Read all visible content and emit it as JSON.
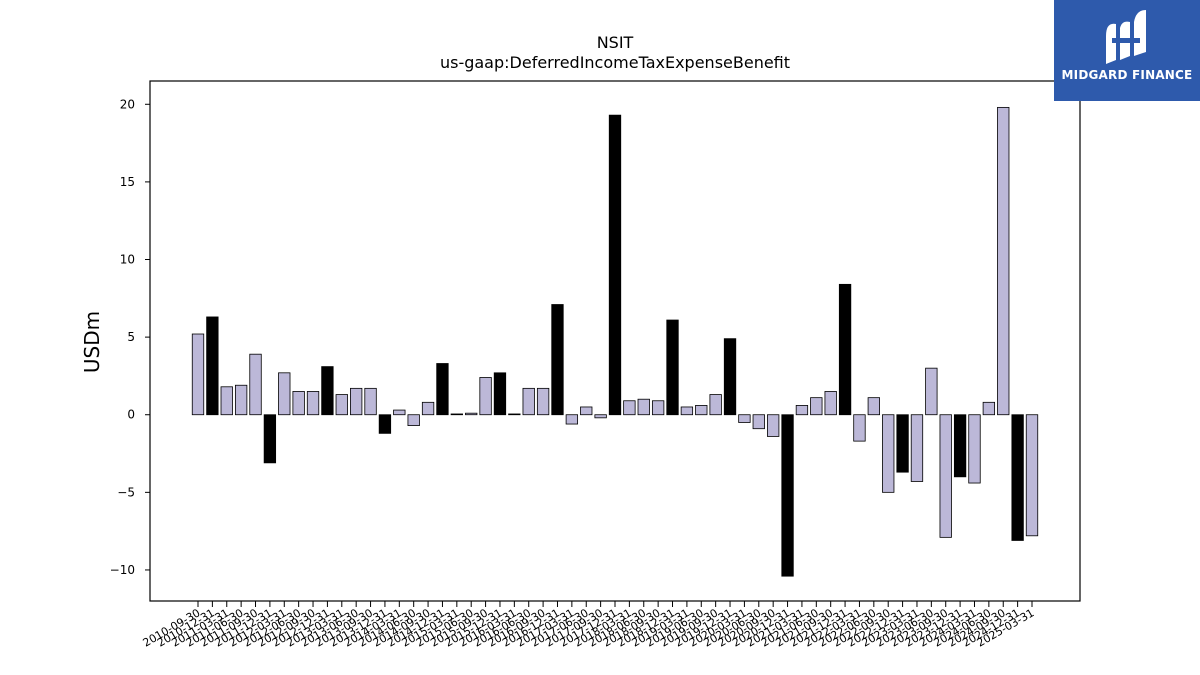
{
  "chart_data": {
    "type": "bar",
    "title": "NSIT",
    "subtitle": "us-gaap:DeferredIncomeTaxExpenseBenefit",
    "xlabel": "",
    "ylabel": "USDm",
    "ylim": [
      -12,
      21.5
    ],
    "yticks": [
      -10,
      -5,
      0,
      5,
      10,
      15,
      20
    ],
    "grid": false,
    "categories": [
      "2010-09-30",
      "2010-12-31",
      "2011-03-31",
      "2011-06-30",
      "2011-09-30",
      "2011-12-31",
      "2012-03-31",
      "2012-06-30",
      "2012-09-30",
      "2012-12-31",
      "2013-03-31",
      "2013-06-30",
      "2013-09-30",
      "2013-12-31",
      "2014-03-31",
      "2014-06-30",
      "2014-09-30",
      "2014-12-31",
      "2015-03-31",
      "2015-06-30",
      "2015-09-30",
      "2015-12-31",
      "2016-03-31",
      "2016-06-30",
      "2016-09-30",
      "2016-12-31",
      "2017-03-31",
      "2017-06-30",
      "2017-09-30",
      "2017-12-31",
      "2018-03-31",
      "2018-06-30",
      "2018-09-30",
      "2018-12-31",
      "2019-03-31",
      "2019-06-30",
      "2019-09-30",
      "2019-12-31",
      "2020-03-31",
      "2020-06-30",
      "2020-09-30",
      "2020-12-31",
      "2021-03-31",
      "2021-06-30",
      "2021-09-30",
      "2021-12-31",
      "2022-03-31",
      "2022-06-30",
      "2022-09-30",
      "2022-12-31",
      "2023-03-31",
      "2023-06-30",
      "2023-09-30",
      "2023-12-31",
      "2024-03-31",
      "2024-06-30",
      "2024-09-30",
      "2024-12-31",
      "2025-03-31"
    ],
    "x_tick_labels": [
      "2010-09-30",
      "2010-12-31",
      "2011-03-31",
      "2011-06-30",
      "2011-09-30",
      "2011-12-31",
      "2012-03-31",
      "2012-06-30",
      "2012-09-30",
      "2012-12-31",
      "2013-03-31",
      "2013-06-30",
      "2013-09-30",
      "2013-12-31",
      "2014-03-31",
      "2014-06-30",
      "2014-09-30",
      "2014-12-31",
      "2015-03-31",
      "2015-06-30",
      "2015-09-30",
      "2015-12-31",
      "2016-03-31",
      "2016-06-30",
      "2016-09-30",
      "2016-12-31",
      "2017-03-31",
      "2017-06-30",
      "2017-09-30",
      "2017-12-31",
      "2018-03-31",
      "2018-06-30",
      "2018-09-30",
      "2018-12-31",
      "2019-03-31",
      "2019-06-30",
      "2019-09-30",
      "2019-12-31",
      "2020-03-31",
      "2020-06-30",
      "2020-09-30",
      "2020-12-31",
      "2021-03-31",
      "2021-06-30",
      "2021-09-30",
      "2021-12-31",
      "2022-03-31",
      "2022-06-30",
      "2022-09-30",
      "2022-12-31",
      "2023-03-31",
      "2023-06-30",
      "2023-09-30",
      "2023-12-31",
      "2024-03-31",
      "2024-06-30",
      "2024-09-30",
      "2024-12-31",
      "2025-03-31"
    ],
    "values": [
      5.2,
      6.3,
      1.8,
      1.9,
      3.9,
      -3.1,
      2.7,
      1.5,
      1.5,
      3.1,
      1.3,
      1.7,
      1.7,
      -1.2,
      0.3,
      -0.7,
      0.8,
      3.3,
      0.05,
      0.1,
      2.4,
      2.7,
      0.05,
      1.7,
      1.7,
      7.1,
      -0.6,
      0.5,
      -0.2,
      19.3,
      0.9,
      1.0,
      0.9,
      6.1,
      0.5,
      0.6,
      1.3,
      4.9,
      -0.5,
      -0.9,
      -1.4,
      -10.4,
      0.6,
      1.1,
      1.5,
      8.4,
      -1.7,
      1.1,
      -5.0,
      -3.7,
      -4.3,
      3.0,
      -7.9,
      -4.0,
      -4.4,
      0.8,
      19.8,
      -8.1,
      -7.8
    ],
    "q4_dates_black": true,
    "colors": {
      "bar_default": "#bcb8d8",
      "bar_q4": "#000000",
      "edge": "#000000"
    }
  },
  "logo": {
    "text": "MIDGARD FINANCE",
    "bg_color": "#2e5aac"
  }
}
